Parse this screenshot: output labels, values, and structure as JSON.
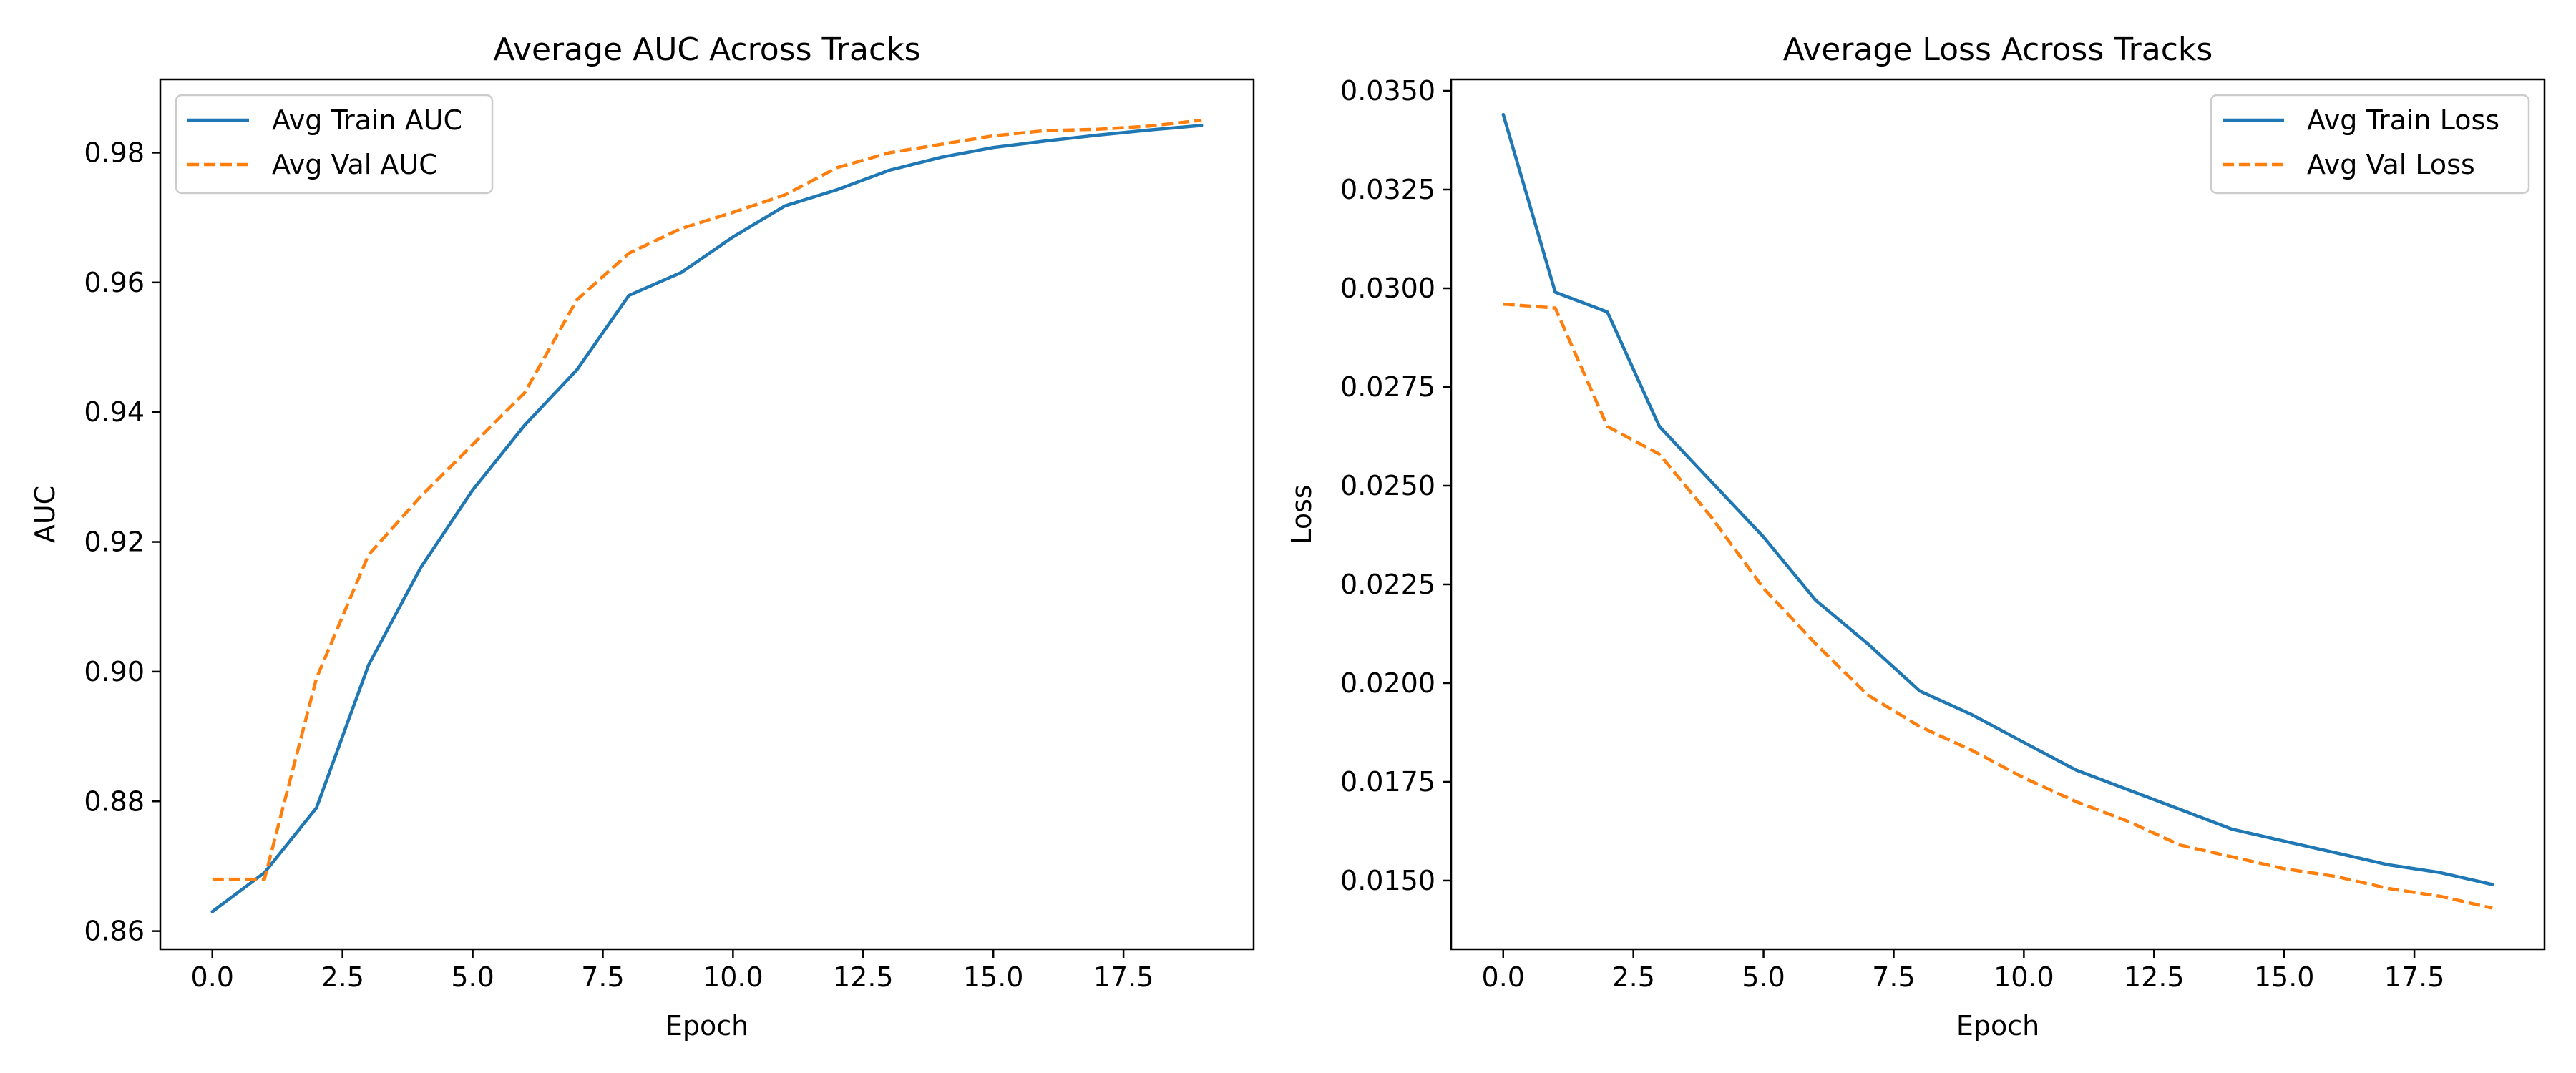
{
  "chart_data": [
    {
      "type": "line",
      "title": "Average AUC Across Tracks",
      "xlabel": "Epoch",
      "ylabel": "AUC",
      "xlim": [
        -1.0,
        20.0
      ],
      "ylim": [
        0.8572,
        0.9913
      ],
      "x_ticks": [
        0.0,
        2.5,
        5.0,
        7.5,
        10.0,
        12.5,
        15.0,
        17.5
      ],
      "x_tick_labels": [
        "0.0",
        "2.5",
        "5.0",
        "7.5",
        "10.0",
        "12.5",
        "15.0",
        "17.5"
      ],
      "y_ticks": [
        0.86,
        0.88,
        0.9,
        0.92,
        0.94,
        0.96,
        0.98
      ],
      "y_tick_labels": [
        "0.86",
        "0.88",
        "0.90",
        "0.92",
        "0.94",
        "0.96",
        "0.98"
      ],
      "grid": false,
      "legend": "upper-left",
      "x": [
        0,
        1,
        2,
        3,
        4,
        5,
        6,
        7,
        8,
        9,
        10,
        11,
        12,
        13,
        14,
        15,
        16,
        17,
        18,
        19
      ],
      "series": [
        {
          "name": "Avg Train AUC",
          "color": "#1f77b4",
          "style": "solid",
          "values": [
            0.863,
            0.869,
            0.879,
            0.901,
            0.916,
            0.928,
            0.938,
            0.9465,
            0.958,
            0.9615,
            0.967,
            0.9718,
            0.9743,
            0.9773,
            0.9793,
            0.9808,
            0.9818,
            0.9827,
            0.9835,
            0.9842
          ]
        },
        {
          "name": "Avg Val AUC",
          "color": "#ff7f0e",
          "style": "dashed",
          "values": [
            0.868,
            0.868,
            0.899,
            0.918,
            0.927,
            0.935,
            0.943,
            0.9573,
            0.9645,
            0.9683,
            0.9708,
            0.9735,
            0.9777,
            0.98,
            0.9813,
            0.9826,
            0.9834,
            0.9836,
            0.9841,
            0.985
          ]
        }
      ]
    },
    {
      "type": "line",
      "title": "Average Loss Across Tracks",
      "xlabel": "Epoch",
      "ylabel": "Loss",
      "xlim": [
        -1.0,
        20.0
      ],
      "ylim": [
        0.01326,
        0.03529
      ],
      "x_ticks": [
        0.0,
        2.5,
        5.0,
        7.5,
        10.0,
        12.5,
        15.0,
        17.5
      ],
      "x_tick_labels": [
        "0.0",
        "2.5",
        "5.0",
        "7.5",
        "10.0",
        "12.5",
        "15.0",
        "17.5"
      ],
      "y_ticks": [
        0.015,
        0.0175,
        0.02,
        0.0225,
        0.025,
        0.0275,
        0.03,
        0.0325,
        0.035
      ],
      "y_tick_labels": [
        "0.0150",
        "0.0175",
        "0.0200",
        "0.0225",
        "0.0250",
        "0.0275",
        "0.0300",
        "0.0325",
        "0.0350"
      ],
      "grid": false,
      "legend": "upper-right",
      "x": [
        0,
        1,
        2,
        3,
        4,
        5,
        6,
        7,
        8,
        9,
        10,
        11,
        12,
        13,
        14,
        15,
        16,
        17,
        18,
        19
      ],
      "series": [
        {
          "name": "Avg Train Loss",
          "color": "#1f77b4",
          "style": "solid",
          "values": [
            0.0344,
            0.0299,
            0.0294,
            0.0265,
            0.0251,
            0.0237,
            0.0221,
            0.021,
            0.0198,
            0.0192,
            0.0185,
            0.0178,
            0.0173,
            0.0168,
            0.0163,
            0.016,
            0.0157,
            0.0154,
            0.0152,
            0.0149
          ]
        },
        {
          "name": "Avg Val Loss",
          "color": "#ff7f0e",
          "style": "dashed",
          "values": [
            0.0296,
            0.0295,
            0.0265,
            0.0258,
            0.0242,
            0.0224,
            0.021,
            0.0197,
            0.0189,
            0.0183,
            0.0176,
            0.017,
            0.0165,
            0.0159,
            0.0156,
            0.0153,
            0.0151,
            0.0148,
            0.0146,
            0.0143
          ]
        }
      ]
    }
  ]
}
